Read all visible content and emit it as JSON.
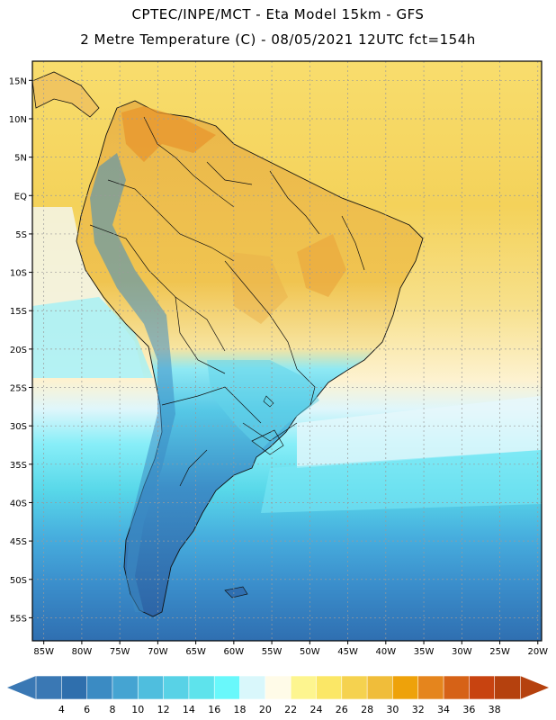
{
  "header": {
    "line1": "CPTEC/INPE/MCT -  Eta Model 15km - GFS",
    "line2": "2 Metre Temperature (C) - 08/05/2021 12UTC fct=154h"
  },
  "map": {
    "region": "South America",
    "variable": "2 Metre Temperature",
    "units": "C",
    "lat_ticks": [
      "15N",
      "10N",
      "5N",
      "EQ",
      "5S",
      "10S",
      "15S",
      "20S",
      "25S",
      "30S",
      "35S",
      "40S",
      "45S",
      "50S",
      "55S"
    ],
    "lon_ticks": [
      "85W",
      "80W",
      "75W",
      "70W",
      "65W",
      "60W",
      "55W",
      "50W",
      "45W",
      "40W",
      "35W",
      "30W",
      "25W",
      "20W"
    ],
    "lat_values": [
      15,
      10,
      5,
      0,
      -5,
      -10,
      -15,
      -20,
      -25,
      -30,
      -35,
      -40,
      -45,
      -50,
      -55
    ],
    "lon_values": [
      -85,
      -80,
      -75,
      -70,
      -65,
      -60,
      -55,
      -50,
      -45,
      -40,
      -35,
      -30,
      -25,
      -20
    ]
  },
  "colorbar": {
    "labels": [
      "4",
      "6",
      "8",
      "10",
      "12",
      "14",
      "16",
      "18",
      "20",
      "22",
      "24",
      "26",
      "28",
      "30",
      "32",
      "34",
      "36",
      "38"
    ],
    "colors": [
      "#3a78b4",
      "#2f6fad",
      "#3b8bc3",
      "#45a4d2",
      "#4fbede",
      "#58d2e6",
      "#5ee3ec",
      "#69f8fb",
      "#d9f7fb",
      "#fffbe8",
      "#fdf58f",
      "#fbe766",
      "#f5d24f",
      "#f0bd3a",
      "#eea20a",
      "#e5851d",
      "#d66217",
      "#c84310",
      "#b5410e",
      "#a8380b"
    ],
    "arrow_left_color": "#3a78b4",
    "arrow_right_color": "#b5410e"
  }
}
